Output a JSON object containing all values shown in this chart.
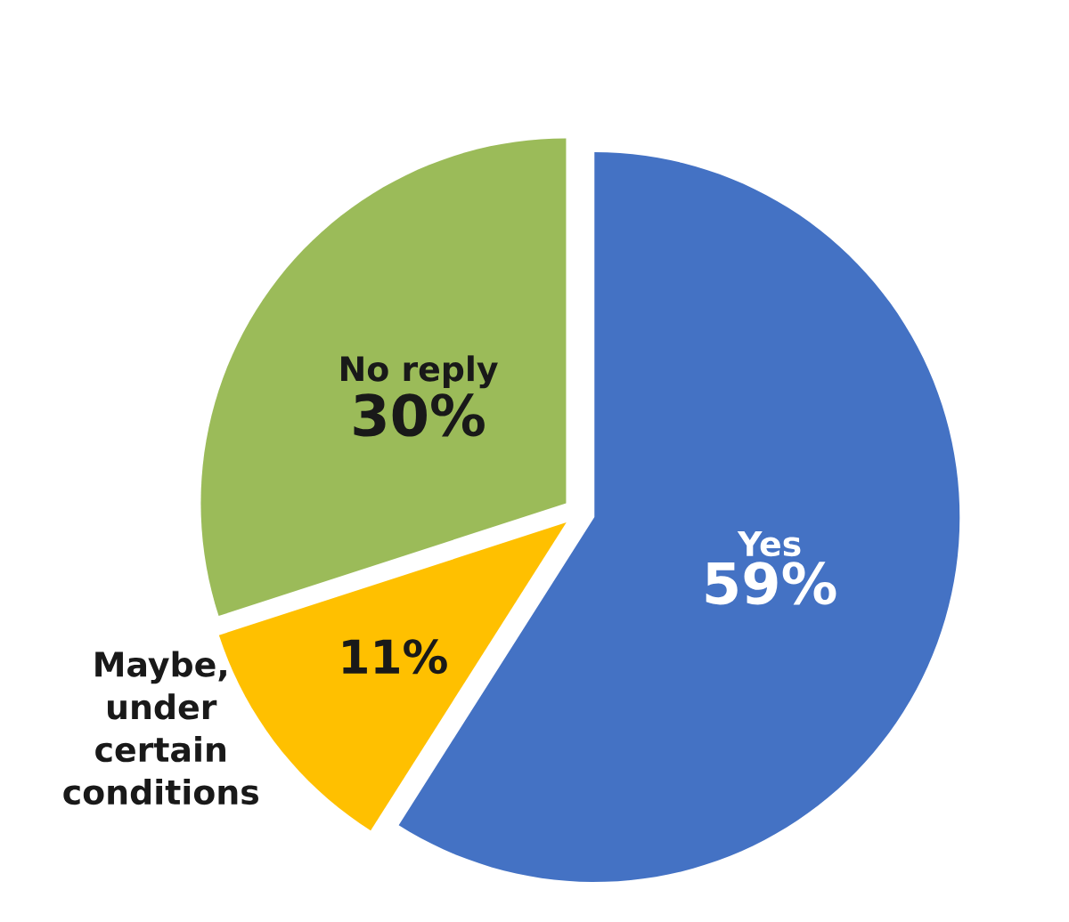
{
  "chart_data": {
    "type": "pie",
    "categories": [
      "Yes",
      "Maybe, under certain conditions",
      "No reply"
    ],
    "values": [
      59,
      11,
      30
    ],
    "colors": [
      "#4472c4",
      "#ffc000",
      "#9bbb59"
    ],
    "value_labels": [
      "59%",
      "11%",
      "30%"
    ]
  }
}
